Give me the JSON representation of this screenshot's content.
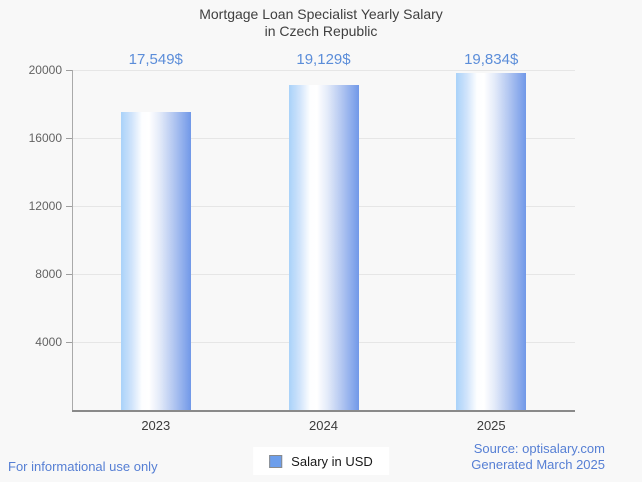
{
  "title": {
    "line1": "Mortgage Loan Specialist Yearly Salary",
    "line2": "in Czech Republic"
  },
  "chart_data": {
    "type": "bar",
    "title": "Mortgage Loan Specialist Yearly Salary in Czech Republic",
    "categories": [
      "2023",
      "2024",
      "2025"
    ],
    "values": [
      17549,
      19129,
      19834
    ],
    "value_labels": [
      "17,549$",
      "19,129$",
      "19,834$"
    ],
    "xlabel": "",
    "ylabel": "",
    "ylim": [
      0,
      20000
    ],
    "yticks": [
      4000,
      8000,
      12000,
      16000,
      20000
    ],
    "ytick_labels": [
      "4000",
      "8000",
      "12000",
      "16000",
      "20000"
    ],
    "grid": true,
    "legend_position": "bottom",
    "series": [
      {
        "name": "Salary in USD",
        "values": [
          17549,
          19129,
          19834
        ]
      }
    ]
  },
  "legend": {
    "label": "Salary in USD"
  },
  "footer": {
    "left": "For informational use only",
    "source": "Source: optisalary.com",
    "generated": "Generated March 2025"
  },
  "colors": {
    "background": "#f8f8f8",
    "title_text": "#3f3f3f",
    "value_label_blue": "#5b8dd9",
    "footer_blue": "#567fd4",
    "bar_edge_blue": "#7198e8",
    "bar_light_blue": "#a9d2f9",
    "legend_swatch": "#6d9eeb",
    "gridline": "#e6e6e6",
    "axis_line": "#8a8a8a",
    "axis_tick_text": "#636363",
    "category_text": "#3c3c3c"
  }
}
